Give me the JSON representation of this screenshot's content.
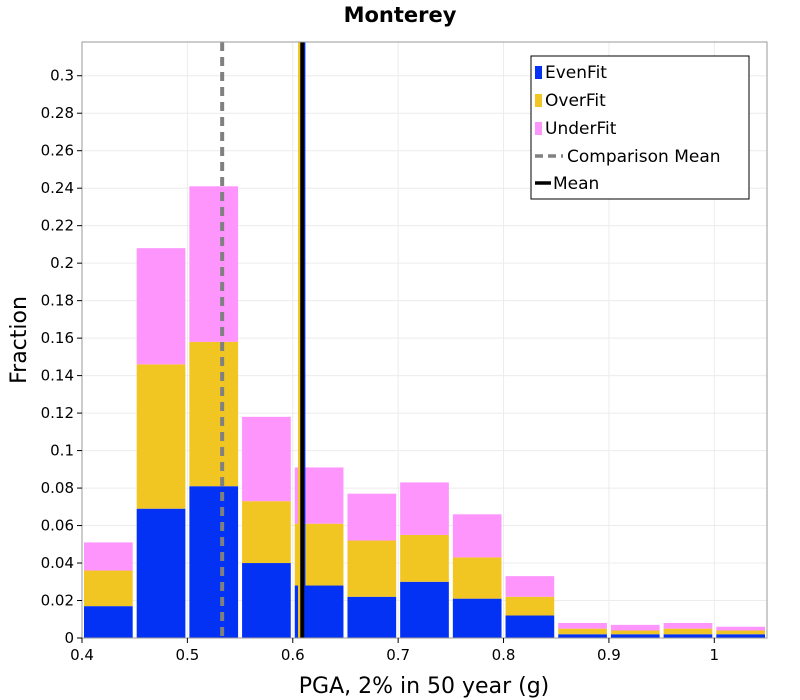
{
  "chart_data": {
    "type": "bar",
    "title": "Monterey",
    "xlabel": "PGA, 2% in 50 year (g)",
    "ylabel": "Fraction",
    "xlim": [
      0.4,
      1.05
    ],
    "ylim": [
      0,
      0.318
    ],
    "xticks": [
      "0.4",
      "0.5",
      "0.6",
      "0.7",
      "0.8",
      "0.9",
      "1"
    ],
    "yticks": [
      "0",
      "0.02",
      "0.04",
      "0.06",
      "0.08",
      "0.1",
      "0.12",
      "0.14",
      "0.16",
      "0.18",
      "0.2",
      "0.22",
      "0.24",
      "0.26",
      "0.28",
      "0.3"
    ],
    "grid": true,
    "stacked": true,
    "bin_width": 0.05,
    "bin_centers": [
      0.425,
      0.475,
      0.525,
      0.575,
      0.625,
      0.675,
      0.725,
      0.775,
      0.825,
      0.875,
      0.925,
      0.975,
      1.025
    ],
    "series": [
      {
        "name": "EvenFit",
        "color": "#0432f5",
        "values": [
          0.017,
          0.069,
          0.081,
          0.04,
          0.028,
          0.022,
          0.03,
          0.021,
          0.012,
          0.002,
          0.002,
          0.002,
          0.002
        ]
      },
      {
        "name": "OverFit",
        "color": "#f2c622",
        "values": [
          0.019,
          0.077,
          0.077,
          0.033,
          0.033,
          0.03,
          0.025,
          0.022,
          0.01,
          0.003,
          0.002,
          0.003,
          0.002
        ]
      },
      {
        "name": "UnderFit",
        "color": "#fd95fd",
        "values": [
          0.015,
          0.062,
          0.083,
          0.045,
          0.03,
          0.025,
          0.028,
          0.023,
          0.011,
          0.003,
          0.003,
          0.003,
          0.002
        ]
      }
    ],
    "lines": [
      {
        "name": "Comparison Mean",
        "x": 0.533,
        "color": "#808080",
        "style": "dashed"
      },
      {
        "name": "Mean",
        "x": 0.609,
        "color": "#000000",
        "style": "solid"
      }
    ],
    "mean_band": {
      "x": [
        0.605,
        0.612
      ],
      "colors": [
        "#f2c622",
        "#fd95fd",
        "#0432f5"
      ]
    },
    "legend": {
      "position": "top-right",
      "entries": [
        "EvenFit",
        "OverFit",
        "UnderFit",
        "Comparison Mean",
        "Mean"
      ]
    }
  }
}
